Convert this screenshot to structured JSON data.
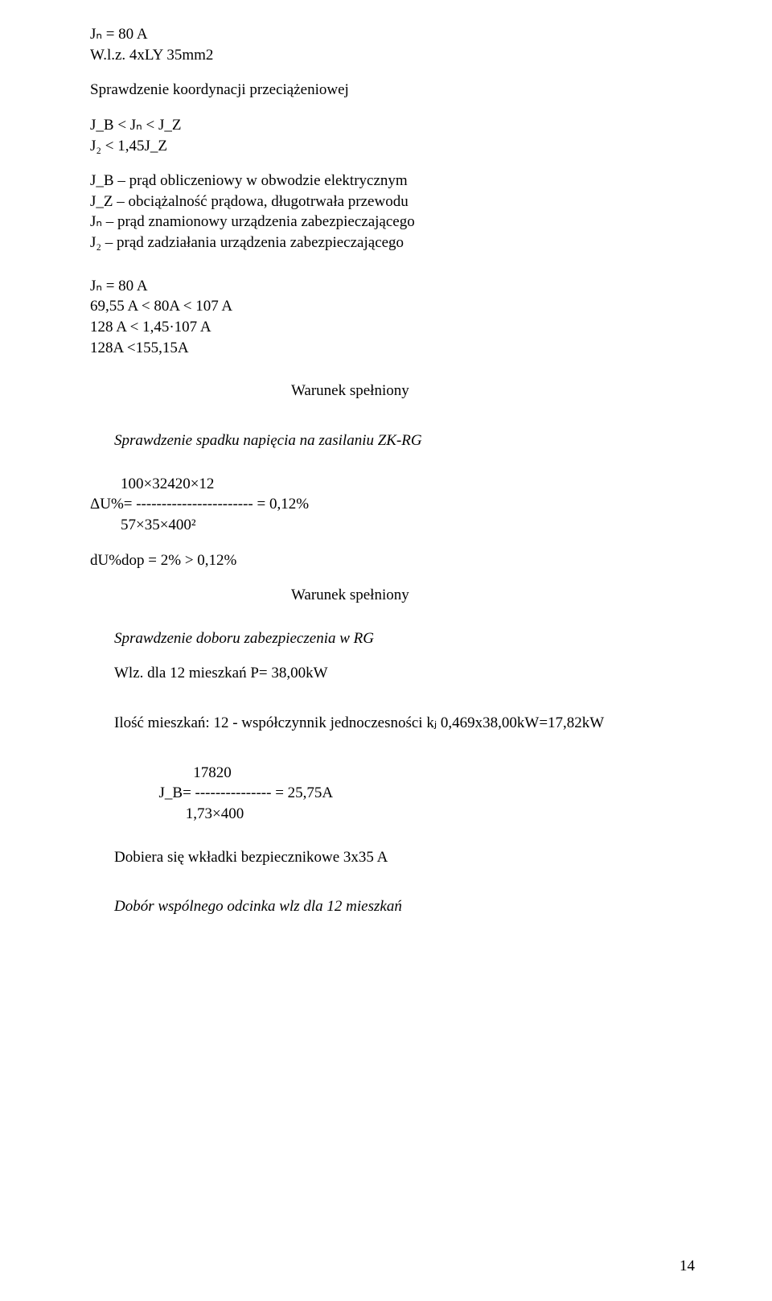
{
  "line_jn80": "Jₙ = 80 A",
  "line_wlz4x": "W.l.z. 4xLY 35mm2",
  "heading_koord": "Sprawdzenie koordynacji przeciążeniowej",
  "ineq1": "J_B < Jₙ < J_Z",
  "ineq2": "J₂ < 1,45J_Z",
  "def_jb": "J_B – prąd obliczeniowy w obwodzie elektrycznym",
  "def_jz": "J_Z – obciążalność prądowa, długotrwała przewodu",
  "def_jn": "Jₙ – prąd znamionowy urządzenia zabezpieczającego",
  "def_j2": "J₂ – prąd zadziałania urządzenia zabezpieczającego",
  "calc_jn": "Jₙ = 80 A",
  "calc_l1": "69,55 A < 80A < 107 A",
  "calc_l2": "128 A < 1,45·107 A",
  "calc_l3": "128A <155,15A",
  "warunek": "Warunek spełniony",
  "heading_spadku": "Sprawdzenie spadku napięcia na zasilaniu ZK-RG",
  "du_num": "        100×32420×12",
  "du_mid": "ΔU%= ----------------------- = 0,12%",
  "du_den": "        57×35×400²",
  "du_dop": "dU%dop = 2%  >  0,12%",
  "heading_doboru": "Sprawdzenie doboru zabezpieczenia w RG",
  "wlz12": "Wlz. dla 12 mieszkań P= 38,00kW",
  "ilosc_text": "Ilość mieszkań: 12 - współczynnik jednoczesności kⱼ 0,469x38,00kW=17,82kW",
  "jb_num": "                           17820",
  "jb_mid": "                  J_B= --------------- = 25,75A",
  "jb_den": "                         1,73×400",
  "dobiera": "Dobiera się wkładki bezpiecznikowe 3x35 A",
  "dobor_wsp": "Dobór wspólnego odcinka wlz dla 12 mieszkań",
  "page_num": "14"
}
